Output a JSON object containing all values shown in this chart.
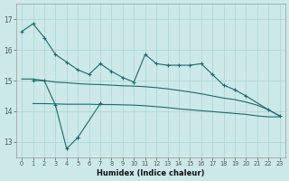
{
  "xlabel": "Humidex (Indice chaleur)",
  "bg_color": "#cce8e8",
  "grid_color": "#aad4d4",
  "line_color": "#1a6b6b",
  "ylim": [
    12.5,
    17.5
  ],
  "xlim": [
    -0.5,
    23.5
  ],
  "yticks": [
    13,
    14,
    15,
    16,
    17
  ],
  "xticks": [
    0,
    1,
    2,
    3,
    4,
    5,
    6,
    7,
    8,
    9,
    10,
    11,
    12,
    13,
    14,
    15,
    16,
    17,
    18,
    19,
    20,
    21,
    22,
    23
  ],
  "line1_x": [
    0,
    1,
    2,
    3,
    4,
    5,
    6,
    7,
    8,
    9,
    10,
    11,
    12,
    13,
    14,
    15,
    16,
    17,
    18,
    19,
    20,
    22,
    23
  ],
  "line1_y": [
    16.6,
    16.85,
    16.4,
    15.85,
    15.6,
    15.35,
    15.2,
    15.55,
    15.3,
    15.1,
    14.95,
    15.85,
    15.55,
    15.5,
    15.5,
    15.5,
    15.55,
    15.2,
    14.85,
    14.7,
    14.5,
    14.05,
    13.85
  ],
  "line2_x": [
    1,
    2,
    3,
    4,
    5,
    7
  ],
  "line2_y": [
    15.0,
    15.0,
    14.2,
    12.78,
    13.15,
    14.25
  ],
  "line3_x": [
    0,
    1,
    2,
    3,
    4,
    5,
    6,
    7,
    8,
    9,
    10,
    11,
    12,
    13,
    14,
    15,
    16,
    17,
    18,
    19,
    20,
    21,
    22,
    23
  ],
  "line3_y": [
    15.05,
    15.05,
    15.0,
    14.95,
    14.93,
    14.9,
    14.88,
    14.87,
    14.85,
    14.83,
    14.82,
    14.8,
    14.77,
    14.73,
    14.68,
    14.63,
    14.57,
    14.5,
    14.43,
    14.38,
    14.3,
    14.2,
    14.05,
    13.85
  ],
  "line4_x": [
    1,
    2,
    3,
    4,
    5,
    6,
    7,
    8,
    9,
    10,
    11,
    12,
    13,
    14,
    15,
    16,
    17,
    18,
    19,
    20,
    21,
    22,
    23
  ],
  "line4_y": [
    14.25,
    14.25,
    14.24,
    14.23,
    14.23,
    14.23,
    14.22,
    14.22,
    14.21,
    14.2,
    14.18,
    14.15,
    14.12,
    14.08,
    14.05,
    14.02,
    13.99,
    13.96,
    13.93,
    13.9,
    13.85,
    13.82,
    13.82
  ]
}
